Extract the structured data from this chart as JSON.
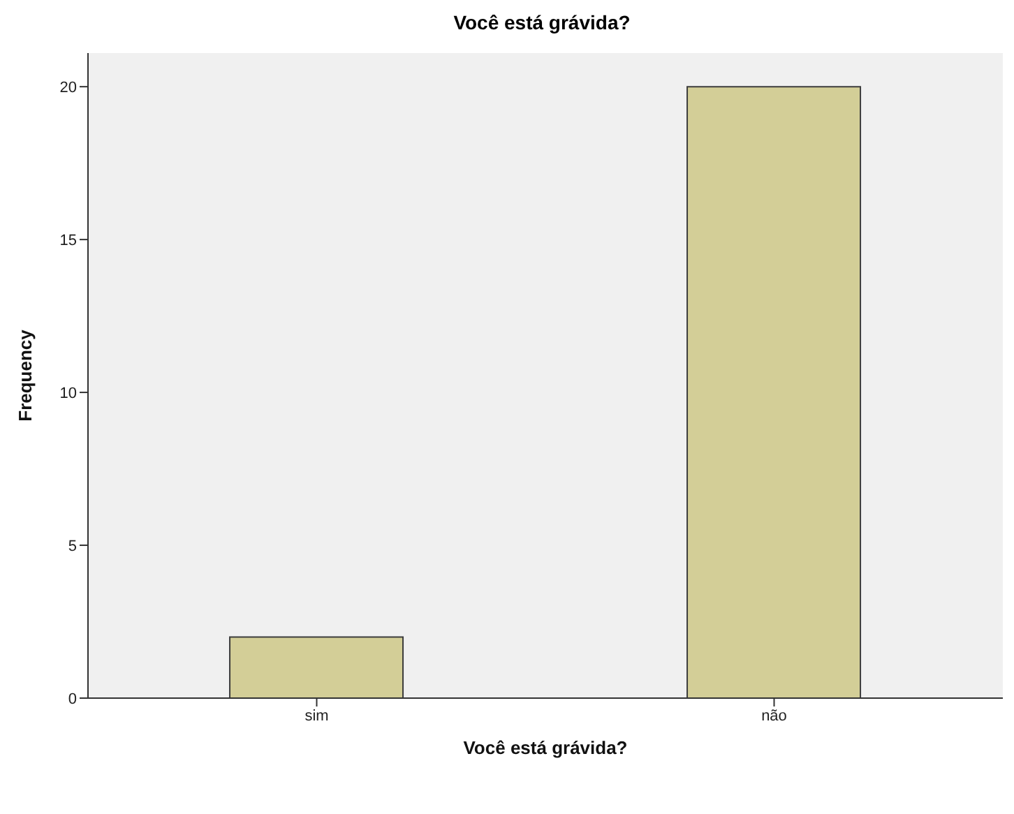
{
  "chart_data": {
    "type": "bar",
    "title": "Você está grávida?",
    "xlabel": "Você está grávida?",
    "ylabel": "Frequency",
    "categories": [
      "sim",
      "não"
    ],
    "values": [
      2,
      20
    ],
    "color": "#d3ce97",
    "ylim": [
      0,
      21.1
    ],
    "yticks": [
      0,
      5,
      10,
      15,
      20
    ]
  }
}
